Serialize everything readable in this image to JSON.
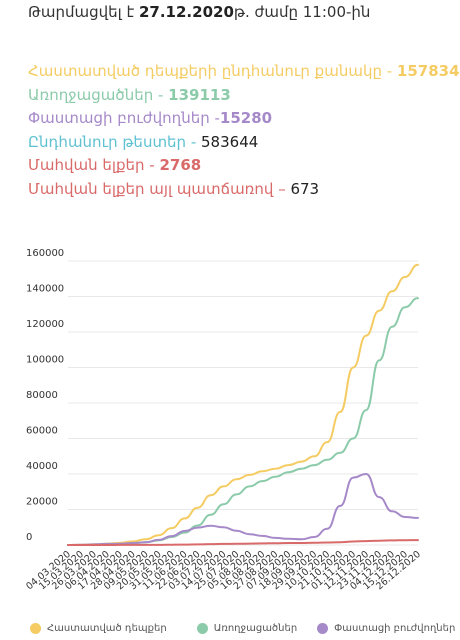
{
  "header": {
    "updated_label": "Թարմացվել է",
    "date": "27.12.2020",
    "time_text": "թ. ժամը 11:00-ին"
  },
  "stats": [
    {
      "label": "Հաստատված դեպքերի ընդհանուր քանակը - ",
      "value": "157834",
      "color": "#f5cc63"
    },
    {
      "label": "Առողջացածներ - ",
      "value": "139113",
      "color": "#8ccbaa"
    },
    {
      "label": "Փաստացի բուժվողներ -",
      "value": "15280",
      "color": "#a589c9"
    },
    {
      "label": "Ընդհանուր թեստեր - ",
      "value": "583644",
      "color": "#5fc1d1"
    },
    {
      "label": "Մահվան ելքեր - ",
      "value": "2768",
      "color": "#d96a6a"
    },
    {
      "label": "Մահվան ելքեր այլ պատճառով – ",
      "value": "673",
      "color": "#d96a6a"
    }
  ],
  "chart_data": {
    "type": "line",
    "title": "",
    "xlabel": "",
    "ylabel": "",
    "ylim": [
      0,
      160000
    ],
    "yticks": [
      0,
      20000,
      40000,
      60000,
      80000,
      100000,
      120000,
      140000,
      160000
    ],
    "grid": true,
    "legend_position": "bottom",
    "categories": [
      "04.03.2020",
      "15.03.2020",
      "26.03.2020",
      "06.04.2020",
      "17.04.2020",
      "28.04.2020",
      "09.05.2020",
      "20.05.2020",
      "31.05.2020",
      "11.06.2020",
      "22.06.2020",
      "03.07.2020",
      "14.07.2020",
      "25.07.2020",
      "05.08.2020",
      "16.08.2020",
      "27.08.2020",
      "07.09.2020",
      "18.09.2020",
      "29.09.2020",
      "10.10.2020",
      "21.10.2020",
      "01.11.2020",
      "12.11.2020",
      "23.11.2020",
      "04.12.2020",
      "15.12.2020",
      "26.12.2020"
    ],
    "series": [
      {
        "name": "Հաստատված դեպքեր",
        "color": "#f5cc63",
        "values": [
          0,
          100,
          400,
          800,
          1200,
          2000,
          3200,
          5500,
          9500,
          15000,
          21000,
          28000,
          33000,
          37000,
          39500,
          41500,
          43000,
          45000,
          47000,
          50000,
          58000,
          75000,
          100000,
          118000,
          132000,
          143000,
          151000,
          157834
        ]
      },
      {
        "name": "Առողջացածներ",
        "color": "#8ccbaa",
        "values": [
          0,
          0,
          50,
          200,
          500,
          900,
          1600,
          2600,
          4500,
          7000,
          11000,
          17000,
          23000,
          28500,
          33000,
          36000,
          38500,
          41000,
          43000,
          45000,
          48000,
          52000,
          60000,
          76000,
          104000,
          123000,
          134000,
          139113
        ]
      },
      {
        "name": "Փաստացի բուժվողներ",
        "color": "#a589c9",
        "values": [
          0,
          100,
          350,
          600,
          700,
          1100,
          1600,
          2900,
          5000,
          7900,
          9800,
          10800,
          10000,
          8000,
          6100,
          5100,
          4000,
          3500,
          3200,
          4500,
          9200,
          22000,
          38000,
          40000,
          27000,
          19000,
          15800,
          15280
        ]
      },
      {
        "name": "Մահվան ելքեր",
        "color": "#d96a6a",
        "values": [
          0,
          0,
          5,
          15,
          30,
          40,
          50,
          80,
          150,
          250,
          350,
          500,
          600,
          700,
          800,
          900,
          1000,
          1100,
          1150,
          1250,
          1400,
          1600,
          1950,
          2200,
          2450,
          2600,
          2700,
          2768
        ]
      }
    ]
  },
  "legend": [
    {
      "name": "Հաստատված դեպքեր",
      "color": "#f5cc63"
    },
    {
      "name": "Առողջացածներ",
      "color": "#8ccbaa"
    },
    {
      "name": "Փաստացի բուժվողներ",
      "color": "#a589c9"
    }
  ]
}
